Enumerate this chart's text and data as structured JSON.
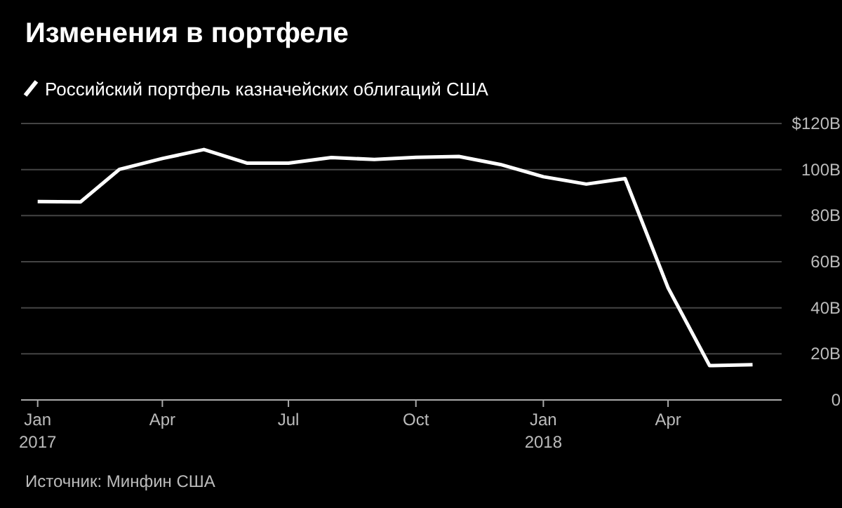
{
  "chart_data": {
    "type": "line",
    "title": "Изменения в портфеле",
    "annotations": [
      "Источник: Минфин США"
    ],
    "x": [
      "2017-01",
      "2017-02",
      "2017-03",
      "2017-04",
      "2017-05",
      "2017-06",
      "2017-07",
      "2017-08",
      "2017-09",
      "2017-10",
      "2017-11",
      "2017-12",
      "2018-01",
      "2018-02",
      "2018-03",
      "2018-04",
      "2018-05",
      "2018-06"
    ],
    "series": [
      {
        "name": "Российский портфель казначейских облигаций США",
        "color": "#ffffff",
        "values": [
          86.1,
          86,
          100.1,
          104.8,
          108.7,
          102.8,
          102.8,
          105.2,
          104.4,
          105.3,
          105.7,
          102.2,
          96.9,
          93.7,
          96.1,
          48.7,
          14.9,
          15.3
        ]
      }
    ],
    "xlim": [
      "2016-12-20",
      "2018-06-22"
    ],
    "xticks": [
      {
        "value": "2017-01",
        "label": "Jan\n2017"
      },
      {
        "value": "2017-04",
        "label": "Apr"
      },
      {
        "value": "2017-07",
        "label": "Jul"
      },
      {
        "value": "2017-10",
        "label": "Oct"
      },
      {
        "value": "2018-01",
        "label": "Jan\n2018"
      },
      {
        "value": "2018-04",
        "label": "Apr"
      }
    ],
    "ylim": [
      0,
      120
    ],
    "yticks": [
      0,
      {
        "value": 20,
        "label": "20B"
      },
      {
        "value": 40,
        "label": "40B"
      },
      {
        "value": 60,
        "label": "60B"
      },
      {
        "value": 80,
        "label": "80B"
      },
      {
        "value": 100,
        "label": "100B"
      },
      {
        "value": 120,
        "label": "$120B"
      }
    ],
    "grid": "y",
    "legend": "top left",
    "marker": "none",
    "line_style": "solid"
  }
}
